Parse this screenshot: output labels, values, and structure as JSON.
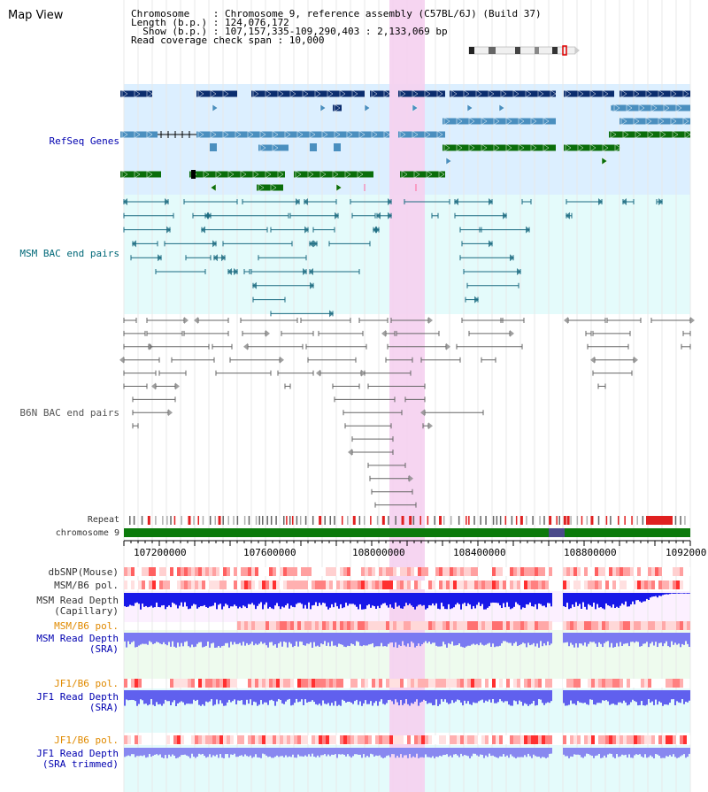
{
  "view_title": "Map View",
  "info": {
    "chromosome_line": "Chromosome    : Chromosome 9, reference assembly (C57BL/6J) (Build 37)",
    "length_line": "Length (b.p.) : 124,076,172",
    "show_line": "  Show (b.p.) : 107,157,335-109,290,403 : 2,133,069 bp",
    "coverage_line": "Read coverage check span : 10,000"
  },
  "tracks": {
    "refseq": "RefSeq Genes",
    "msm_bac": "MSM BAC end pairs",
    "b6n_bac": "B6N BAC end pairs",
    "repeat": "Repeat",
    "chromosome": "chromosome 9",
    "dbsnp": "dbSNP(Mouse)",
    "msm_b6_pol_1": "MSM/B6 pol.",
    "msm_read_depth_cap_1": "MSM Read Depth",
    "msm_read_depth_cap_2": "(Capillary)",
    "msm_b6_pol_2": "MSM/B6 pol.",
    "msm_read_depth_sra_1": "MSM Read Depth",
    "msm_read_depth_sra_2": "(SRA)",
    "jf1_b6_pol_1": "JF1/B6 pol.",
    "jf1_read_depth_sra_1": "JF1 Read Depth",
    "jf1_read_depth_sra_2": "(SRA)",
    "jf1_b6_pol_2": "JF1/B6 pol.",
    "jf1_read_depth_trim_1": "JF1 Read Depth",
    "jf1_read_depth_trim_2": "(SRA trimmed)"
  },
  "axis_ticks": [
    "107200000",
    "107600000",
    "108000000",
    "108400000",
    "108800000",
    "1092000"
  ],
  "colors": {
    "refseq_bg": "#dcefff",
    "bac_bg": "#e4fbfb",
    "highlight": "#f5d0f0",
    "gene_dark": "#0b2d6e",
    "gene_mid": "#4a8fbf",
    "gene_green": "#0a6e0a",
    "msm_line": "#1a6a80",
    "b6n_line": "#666666",
    "chrom_green": "#0b7a0b",
    "depth_blue": "#2020e0",
    "depth_light": "#6a6af0"
  }
}
